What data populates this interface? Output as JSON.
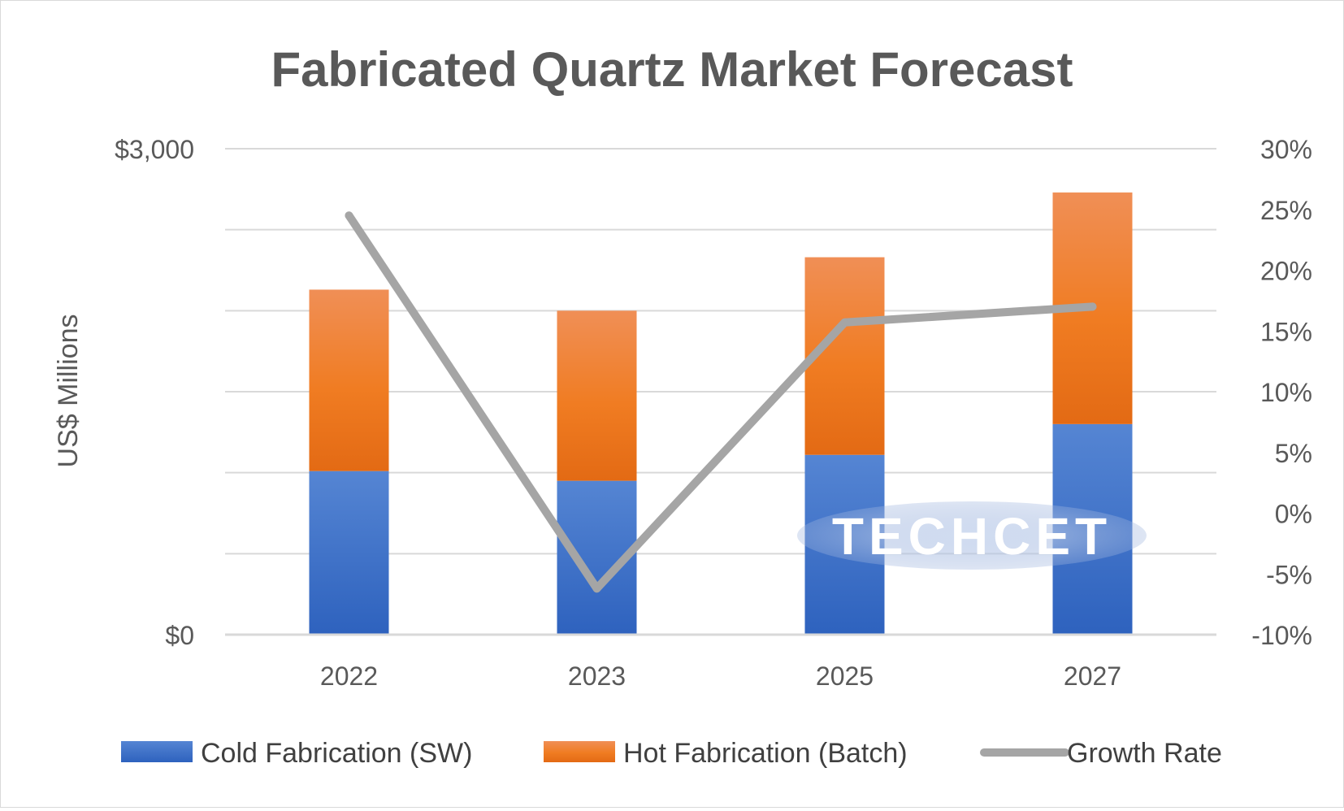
{
  "chart_data": {
    "type": "bar",
    "stacked": true,
    "title": "Fabricated Quartz Market Forecast",
    "ylabel": "US$ Millions",
    "categories": [
      "2022",
      "2023",
      "2025",
      "2027"
    ],
    "ylim": [
      0,
      3000
    ],
    "y_ticks": [
      "$0",
      "$3,000"
    ],
    "y2lim": [
      -10,
      30
    ],
    "y2_ticks": [
      "-10%",
      "-5%",
      "0%",
      "5%",
      "10%",
      "15%",
      "20%",
      "25%",
      "30%"
    ],
    "gridlines": 7,
    "series": [
      {
        "name": "Cold Fabrication (SW)",
        "type": "bar",
        "axis": "left",
        "values": [
          1010,
          950,
          1110,
          1300
        ],
        "color": "#4472C4"
      },
      {
        "name": "Hot Fabrication (Batch)",
        "type": "bar",
        "axis": "left",
        "values": [
          1120,
          1050,
          1220,
          1430
        ],
        "color": "#ED7D31"
      },
      {
        "name": "Growth Rate",
        "type": "line",
        "axis": "right",
        "values": [
          24.5,
          -6.2,
          15.7,
          17.0
        ],
        "color": "#A5A5A5"
      }
    ],
    "legend_position": "bottom",
    "watermark": "TECHCET"
  }
}
